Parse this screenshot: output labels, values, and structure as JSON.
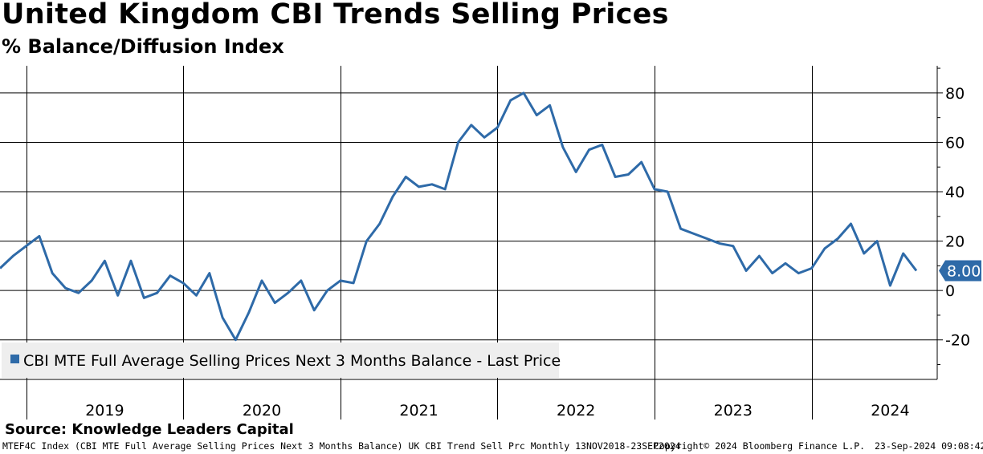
{
  "header": {
    "title": "United Kingdom CBI Trends Selling Prices",
    "subtitle": "% Balance/Diffusion Index"
  },
  "chart_data": {
    "type": "line",
    "title": "United Kingdom CBI Trends Selling Prices",
    "subtitle": "% Balance/Diffusion Index",
    "xlabel": "",
    "ylabel": "",
    "ylim": [
      -36,
      91
    ],
    "yticks": [
      -20,
      0,
      20,
      40,
      60,
      80
    ],
    "ytick_labels": [
      "-20",
      "0",
      "20",
      "40",
      "60",
      "80"
    ],
    "x_start": "Nov 2018",
    "year_labels": [
      "2019",
      "2020",
      "2021",
      "2022",
      "2023",
      "2024"
    ],
    "grid": true,
    "legend_position": "bottom-left",
    "series": [
      {
        "name": "CBI MTE Full Average Selling Prices Next 3 Months Balance - Last Price",
        "color": "#2e6aa8",
        "values": [
          9,
          14,
          18,
          22,
          7,
          1,
          -1,
          4,
          12,
          -2,
          12,
          -3,
          -1,
          6,
          3,
          -2,
          7,
          -11,
          -20,
          -9,
          4,
          -5,
          -1,
          4,
          -8,
          0,
          4,
          3,
          20,
          27,
          38,
          46,
          42,
          43,
          41,
          60,
          67,
          62,
          66,
          77,
          80,
          71,
          75,
          58,
          48,
          57,
          59,
          46,
          47,
          52,
          41,
          40,
          25,
          23,
          21,
          19,
          18,
          8,
          14,
          7,
          11,
          7,
          9,
          17,
          21,
          27,
          15,
          20,
          2,
          15,
          8
        ]
      }
    ],
    "last_value_label": "8.00"
  },
  "legend": {
    "label": "CBI MTE Full Average Selling Prices Next 3 Months Balance - Last Price"
  },
  "source": "Source: Knowledge Leaders Capital",
  "footer": {
    "description": "MTEF4C Index (CBI MTE Full Average Selling Prices Next 3 Months Balance) UK CBI Trend Sell Prc  Monthly 13NOV2018-23SEP2024",
    "copyright": "Copyright© 2024 Bloomberg Finance L.P.",
    "timestamp": "23-Sep-2024 09:08:42"
  },
  "colors": {
    "line": "#2e6aa8",
    "last_tag": "#2e6aa8",
    "legend_bg": "#eeeeee"
  }
}
